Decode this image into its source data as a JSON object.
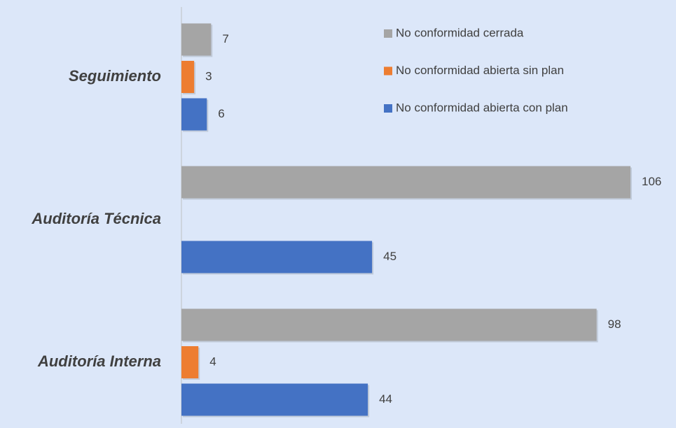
{
  "chart_data": {
    "type": "bar",
    "orientation": "horizontal",
    "categories": [
      "Seguimiento",
      "Auditoría Técnica",
      "Auditoría Interna"
    ],
    "series": [
      {
        "name": "No conformidad cerrada",
        "color": "#a5a5a5",
        "values": [
          7,
          106,
          98
        ]
      },
      {
        "name": "No conformidad abierta sin plan",
        "color": "#ed7d31",
        "values": [
          3,
          null,
          4
        ]
      },
      {
        "name": "No conformidad abierta con plan",
        "color": "#4472c4",
        "values": [
          6,
          45,
          44
        ]
      }
    ],
    "legend": "top-right"
  }
}
